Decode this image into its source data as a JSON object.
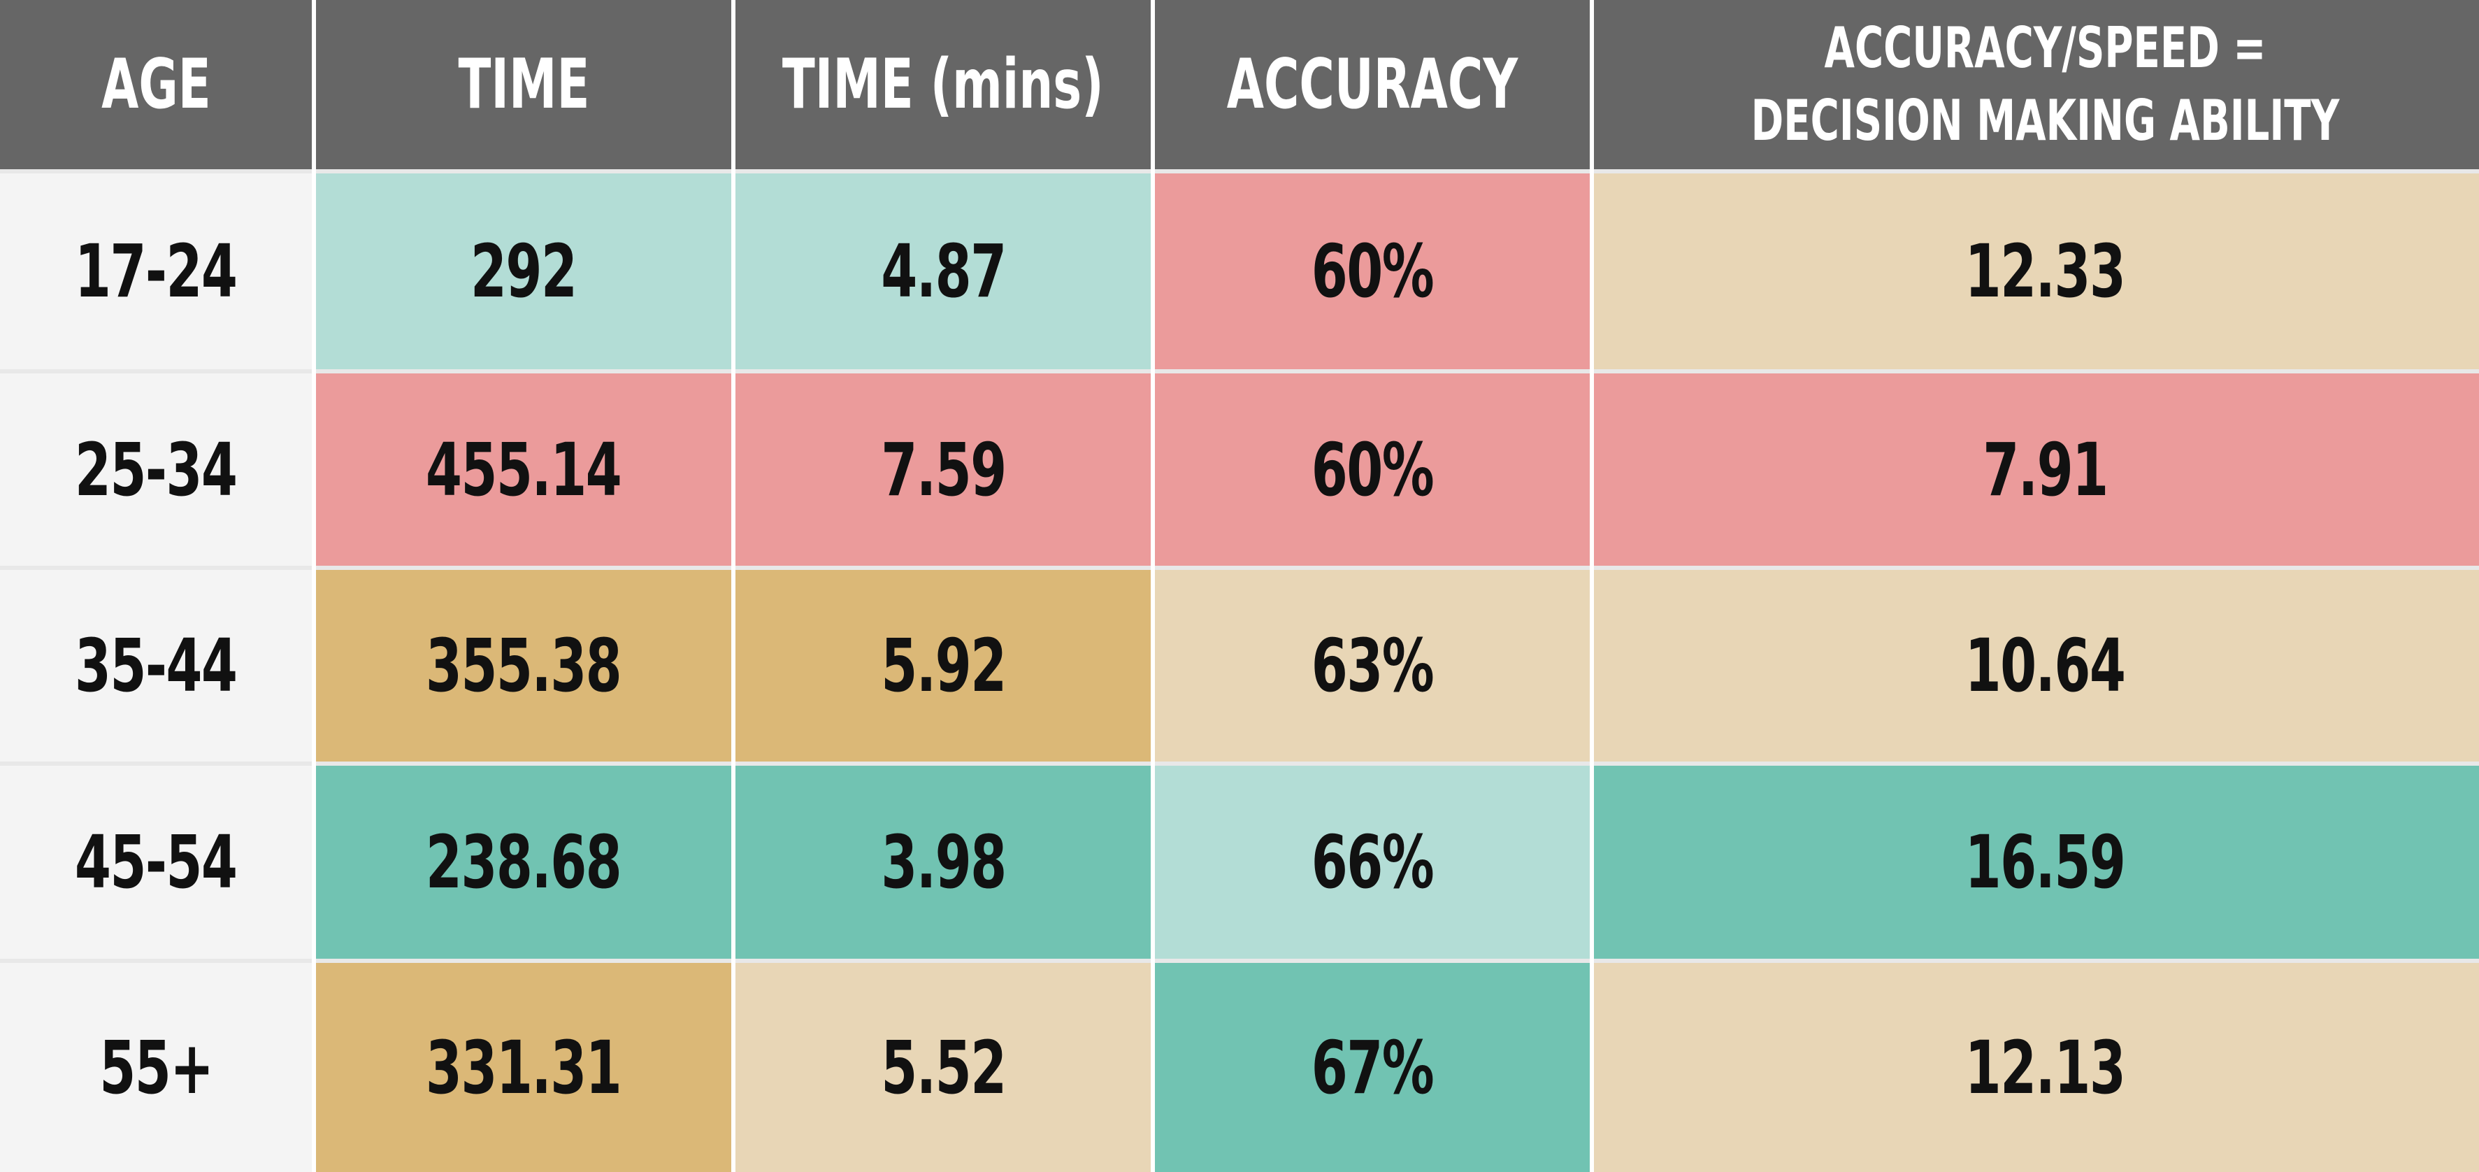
{
  "colors": {
    "header_bg": "#666666",
    "age_bg": "#f4f4f4",
    "light_teal": "#b3ddd6",
    "red": "#eb9b9b",
    "gold": "#dbb877",
    "beige": "#e8d6b6",
    "teal": "#71c3b2"
  },
  "chart_data": {
    "type": "table",
    "columns": [
      "AGE",
      "TIME",
      "TIME (mins)",
      "ACCURACY",
      "ACCURACY/SPEED =\nDECISION MAKING ABILITY"
    ],
    "rows": [
      {
        "cells": [
          "17-24",
          "292",
          "4.87",
          "60%",
          "12.33"
        ],
        "colors": [
          "age_bg",
          "light_teal",
          "light_teal",
          "red",
          "beige"
        ]
      },
      {
        "cells": [
          "25-34",
          "455.14",
          "7.59",
          "60%",
          "7.91"
        ],
        "colors": [
          "age_bg",
          "red",
          "red",
          "red",
          "red"
        ]
      },
      {
        "cells": [
          "35-44",
          "355.38",
          "5.92",
          "63%",
          "10.64"
        ],
        "colors": [
          "age_bg",
          "gold",
          "gold",
          "beige",
          "beige"
        ]
      },
      {
        "cells": [
          "45-54",
          "238.68",
          "3.98",
          "66%",
          "16.59"
        ],
        "colors": [
          "age_bg",
          "teal",
          "teal",
          "light_teal",
          "teal"
        ]
      },
      {
        "cells": [
          "55+",
          "331.31",
          "5.52",
          "67%",
          "12.13"
        ],
        "colors": [
          "age_bg",
          "gold",
          "beige",
          "teal",
          "beige"
        ]
      }
    ]
  }
}
